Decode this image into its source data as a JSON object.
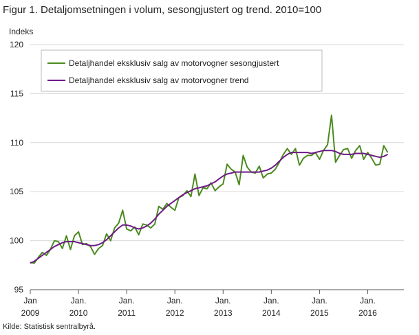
{
  "title": "Figur 1. Detaljomsetningen i volum, sesongjustert og trend. 2010=100",
  "source": "Kilde: Statistisk sentralbyrå.",
  "chart_data": {
    "type": "line",
    "ylabel": "Indeks",
    "ylim": [
      95,
      120
    ],
    "yticks": [
      95,
      100,
      105,
      110,
      115,
      120
    ],
    "xticks": [
      {
        "month": 0,
        "line1": "Jan",
        "line2": "2009"
      },
      {
        "month": 12,
        "line1": "Jan.",
        "line2": "2010"
      },
      {
        "month": 24,
        "line1": "Jan.",
        "line2": "2011"
      },
      {
        "month": 36,
        "line1": "Jan.",
        "line2": "2012"
      },
      {
        "month": 48,
        "line1": "Jan.",
        "line2": "2013"
      },
      {
        "month": 60,
        "line1": "Jan.",
        "line2": "2014"
      },
      {
        "month": 72,
        "line1": "Jan.",
        "line2": "2015"
      },
      {
        "month": 84,
        "line1": "Jan.",
        "line2": "2016"
      }
    ],
    "x_start": "2009-01",
    "grid": "horizontal",
    "legend_position": "top-left",
    "series": [
      {
        "name": "Detaljhandel eksklusiv salg av motorvogner sesongjustert",
        "color": "#4b8a1f",
        "values": [
          97.8,
          97.7,
          98.3,
          98.8,
          98.5,
          99.1,
          100.0,
          99.9,
          99.2,
          100.5,
          99.1,
          100.5,
          100.9,
          99.6,
          99.7,
          99.4,
          98.6,
          99.2,
          99.5,
          100.7,
          100.0,
          101.3,
          101.8,
          103.1,
          101.2,
          101.0,
          101.4,
          100.6,
          101.7,
          101.6,
          101.3,
          101.7,
          103.5,
          103.2,
          103.8,
          103.4,
          103.1,
          104.4,
          104.6,
          105.1,
          104.5,
          106.8,
          104.6,
          105.4,
          105.3,
          105.9,
          105.1,
          105.5,
          105.8,
          107.8,
          107.3,
          107.0,
          105.7,
          108.7,
          107.5,
          107.0,
          106.9,
          107.6,
          106.4,
          106.8,
          106.9,
          107.3,
          108.0,
          108.8,
          109.4,
          108.8,
          109.4,
          107.7,
          108.4,
          108.7,
          108.7,
          109.0,
          108.3,
          109.2,
          109.8,
          112.8,
          108.0,
          108.7,
          109.3,
          109.4,
          108.4,
          109.2,
          109.7,
          108.3,
          109.0,
          108.4,
          107.7,
          107.8,
          109.7,
          109.0
        ]
      },
      {
        "name": "Detaljhandel eksklusiv salg av motorvogner trend",
        "color": "#6e1a86",
        "values": [
          97.7,
          97.9,
          98.2,
          98.5,
          98.8,
          99.1,
          99.4,
          99.6,
          99.8,
          99.9,
          99.9,
          99.9,
          99.8,
          99.7,
          99.6,
          99.5,
          99.5,
          99.6,
          99.8,
          100.1,
          100.5,
          100.9,
          101.3,
          101.6,
          101.6,
          101.5,
          101.3,
          101.2,
          101.3,
          101.5,
          101.8,
          102.2,
          102.7,
          103.1,
          103.5,
          103.8,
          104.1,
          104.4,
          104.7,
          104.9,
          105.1,
          105.3,
          105.4,
          105.5,
          105.6,
          105.8,
          106.0,
          106.3,
          106.6,
          106.8,
          106.9,
          107.0,
          107.0,
          107.0,
          107.0,
          107.0,
          107.0,
          107.0,
          107.1,
          107.2,
          107.4,
          107.7,
          108.1,
          108.5,
          108.8,
          109.0,
          109.0,
          109.0,
          109.0,
          109.0,
          108.9,
          109.0,
          109.1,
          109.2,
          109.2,
          109.2,
          109.1,
          108.9,
          108.8,
          108.8,
          108.8,
          108.9,
          108.9,
          108.9,
          108.8,
          108.7,
          108.6,
          108.5,
          108.6,
          108.8
        ]
      }
    ]
  }
}
